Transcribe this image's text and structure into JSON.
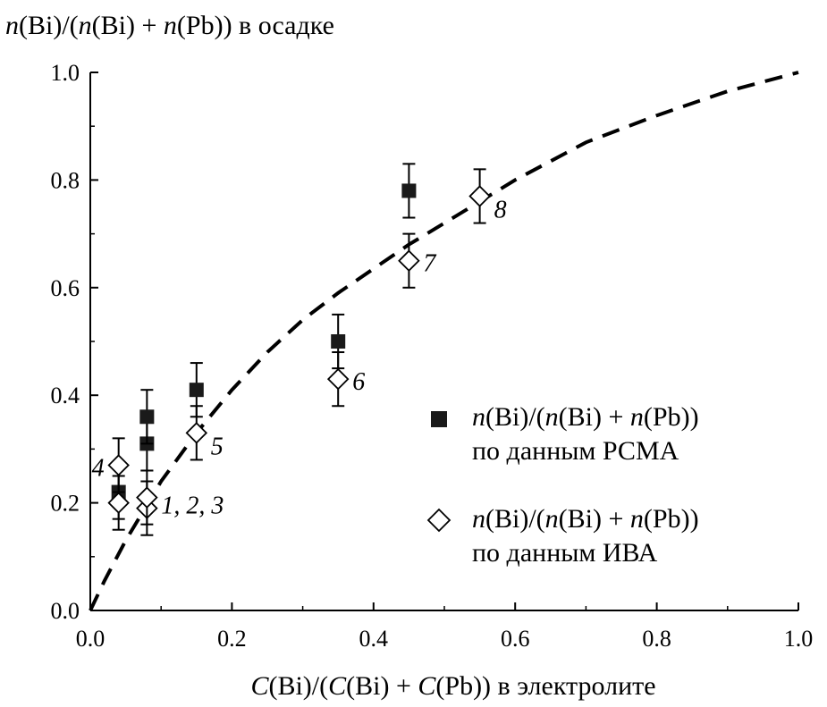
{
  "chart_data": {
    "type": "scatter",
    "ylabel_parts": [
      {
        "t": "n",
        "i": true
      },
      {
        "t": "(Bi)/(",
        "i": false
      },
      {
        "t": "n",
        "i": true
      },
      {
        "t": "(Bi) + ",
        "i": false
      },
      {
        "t": "n",
        "i": true
      },
      {
        "t": "(Pb)) в осадке",
        "i": false
      }
    ],
    "xlabel_parts": [
      {
        "t": "C",
        "i": true
      },
      {
        "t": "(Bi)/(",
        "i": false
      },
      {
        "t": "C",
        "i": true
      },
      {
        "t": "(Bi) + ",
        "i": false
      },
      {
        "t": "C",
        "i": true
      },
      {
        "t": "(Pb)) в электролите",
        "i": false
      }
    ],
    "xlim": [
      0.0,
      1.0
    ],
    "ylim": [
      0.0,
      1.0
    ],
    "xticks": [
      "0.0",
      "0.2",
      "0.4",
      "0.6",
      "0.8",
      "1.0"
    ],
    "yticks": [
      "0.0",
      "0.2",
      "0.4",
      "0.6",
      "0.8",
      "1.0"
    ],
    "grid": false,
    "legend_position": "right",
    "series": [
      {
        "name": "РСМА",
        "marker": "filled-square",
        "legend_parts": [
          [
            {
              "t": "n",
              "i": true
            },
            {
              "t": "(Bi)/(",
              "i": false
            },
            {
              "t": "n",
              "i": true
            },
            {
              "t": "(Bi) + ",
              "i": false
            },
            {
              "t": "n",
              "i": true
            },
            {
              "t": "(Pb))",
              "i": false
            }
          ],
          [
            {
              "t": "по данным РСМА",
              "i": false
            }
          ]
        ],
        "points": [
          {
            "x": 0.04,
            "y": 0.22,
            "err": 0.05
          },
          {
            "x": 0.08,
            "y": 0.31,
            "err": 0.05
          },
          {
            "x": 0.08,
            "y": 0.36,
            "err": 0.05
          },
          {
            "x": 0.15,
            "y": 0.41,
            "err": 0.05
          },
          {
            "x": 0.35,
            "y": 0.5,
            "err": 0.05
          },
          {
            "x": 0.45,
            "y": 0.78,
            "err": 0.05
          }
        ]
      },
      {
        "name": "ИВА",
        "marker": "open-diamond",
        "legend_parts": [
          [
            {
              "t": "n",
              "i": true
            },
            {
              "t": "(Bi)/(",
              "i": false
            },
            {
              "t": "n",
              "i": true
            },
            {
              "t": "(Bi) + ",
              "i": false
            },
            {
              "t": "n",
              "i": true
            },
            {
              "t": "(Pb))",
              "i": false
            }
          ],
          [
            {
              "t": "по данным ИВА",
              "i": false
            }
          ]
        ],
        "points": [
          {
            "x": 0.04,
            "y": 0.27,
            "err": 0.05
          },
          {
            "x": 0.04,
            "y": 0.2,
            "err": 0.05
          },
          {
            "x": 0.08,
            "y": 0.19,
            "err": 0.05
          },
          {
            "x": 0.08,
            "y": 0.21,
            "err": 0.05
          },
          {
            "x": 0.15,
            "y": 0.33,
            "err": 0.05
          },
          {
            "x": 0.35,
            "y": 0.43,
            "err": 0.05
          },
          {
            "x": 0.45,
            "y": 0.65,
            "err": 0.05
          },
          {
            "x": 0.55,
            "y": 0.77,
            "err": 0.05
          }
        ]
      }
    ],
    "curve": {
      "style": "dashed",
      "points": [
        [
          0.0,
          0.0
        ],
        [
          0.02,
          0.055
        ],
        [
          0.05,
          0.13
        ],
        [
          0.1,
          0.24
        ],
        [
          0.15,
          0.33
        ],
        [
          0.2,
          0.41
        ],
        [
          0.25,
          0.48
        ],
        [
          0.3,
          0.54
        ],
        [
          0.35,
          0.59
        ],
        [
          0.4,
          0.635
        ],
        [
          0.45,
          0.68
        ],
        [
          0.5,
          0.72
        ],
        [
          0.55,
          0.76
        ],
        [
          0.6,
          0.8
        ],
        [
          0.7,
          0.87
        ],
        [
          0.8,
          0.92
        ],
        [
          0.9,
          0.965
        ],
        [
          1.0,
          1.0
        ]
      ]
    },
    "annotations": [
      {
        "text": "4",
        "x": 0.04,
        "y": 0.27,
        "anchor": "left"
      },
      {
        "text": "1, 2, 3",
        "x": 0.08,
        "y": 0.2,
        "anchor": "right"
      },
      {
        "text": "5",
        "x": 0.15,
        "y": 0.31,
        "anchor": "right"
      },
      {
        "text": "6",
        "x": 0.35,
        "y": 0.43,
        "anchor": "right"
      },
      {
        "text": "7",
        "x": 0.45,
        "y": 0.65,
        "anchor": "right"
      },
      {
        "text": "8",
        "x": 0.55,
        "y": 0.75,
        "anchor": "right"
      }
    ]
  }
}
